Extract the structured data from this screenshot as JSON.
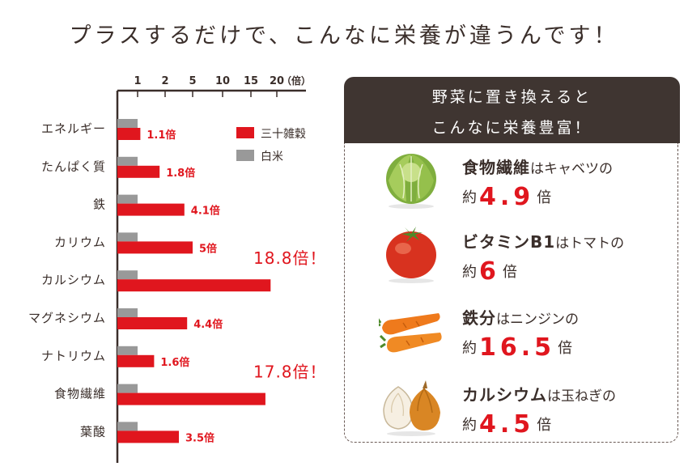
{
  "headline": "プラスするだけで、こんなに栄養が違うんです！",
  "chart_data": {
    "type": "bar",
    "orientation": "horizontal",
    "xticks": [
      "1",
      "2",
      "5",
      "10",
      "15",
      "20"
    ],
    "xunit": "（倍）",
    "categories": [
      "エネルギー",
      "たんぱく質",
      "鉄",
      "カリウム",
      "カルシウム",
      "マグネシウム",
      "ナトリウム",
      "食物繊維",
      "葉酸"
    ],
    "series": [
      {
        "name": "三十雑穀",
        "color": "#e0161e",
        "values": [
          1.1,
          1.8,
          4.1,
          5,
          18.8,
          4.4,
          1.6,
          17.8,
          3.5
        ]
      },
      {
        "name": "白米",
        "color": "#999999",
        "values": [
          1,
          1,
          1,
          1,
          1,
          1,
          1,
          1,
          1
        ]
      }
    ],
    "value_labels": [
      "1.1倍",
      "1.8倍",
      "4.1倍",
      "5倍",
      "18.8倍！",
      "4.4倍",
      "1.6倍",
      "17.8倍！",
      "3.5倍"
    ],
    "legend_position": "top-right"
  },
  "panel": {
    "title_line1": "野菜に置き換えると",
    "title_line2": "こんなに栄養豊富！",
    "items": [
      {
        "icon": "cabbage-icon",
        "nutrient": "食物繊維",
        "rest": "はキャベツの",
        "prefix": "約",
        "value": "4.9",
        "suffix": "倍"
      },
      {
        "icon": "tomato-icon",
        "nutrient": "ビタミンB1",
        "rest": "はトマトの",
        "prefix": "約",
        "value": "6",
        "suffix": "倍"
      },
      {
        "icon": "carrot-icon",
        "nutrient": "鉄分",
        "rest": "はニンジンの",
        "prefix": "約",
        "value": "16.5",
        "suffix": "倍"
      },
      {
        "icon": "onion-icon",
        "nutrient": "カルシウム",
        "rest": "は玉ねぎの",
        "prefix": "約",
        "value": "4.5",
        "suffix": "倍"
      }
    ]
  }
}
